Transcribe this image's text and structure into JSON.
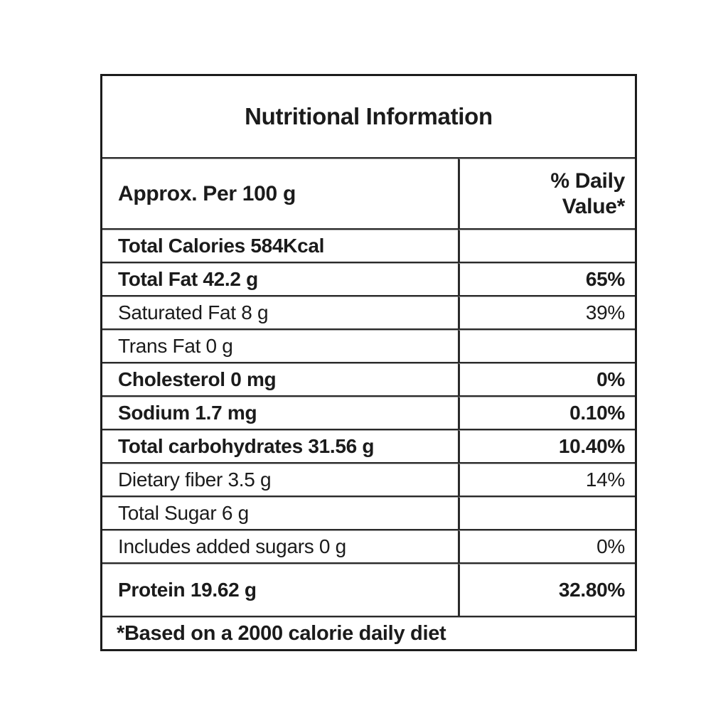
{
  "table": {
    "title": "Nutritional Information",
    "header": {
      "label": "Approx. Per 100 g",
      "value_line1": "% Daily",
      "value_line2": "Value*"
    },
    "rows": [
      {
        "label": "Total Calories 584Kcal",
        "value": "",
        "bold": true,
        "tall": false
      },
      {
        "label": "Total Fat 42.2 g",
        "value": "65%",
        "bold": true,
        "tall": false
      },
      {
        "label": "Saturated Fat 8 g",
        "value": "39%",
        "bold": false,
        "tall": false
      },
      {
        "label": "Trans Fat 0 g",
        "value": "",
        "bold": false,
        "tall": false
      },
      {
        "label": "Cholesterol 0 mg",
        "value": "0%",
        "bold": true,
        "tall": false
      },
      {
        "label": "Sodium 1.7 mg",
        "value": "0.10%",
        "bold": true,
        "tall": false
      },
      {
        "label": "Total carbohydrates 31.56 g",
        "value": "10.40%",
        "bold": true,
        "tall": false
      },
      {
        "label": "Dietary fiber 3.5 g",
        "value": "14%",
        "bold": false,
        "tall": false
      },
      {
        "label": "Total Sugar 6 g",
        "value": "",
        "bold": false,
        "tall": false
      },
      {
        "label": "Includes added sugars 0 g",
        "value": "0%",
        "bold": false,
        "tall": false
      },
      {
        "label": "Protein 19.62 g",
        "value": "32.80%",
        "bold": true,
        "tall": true
      }
    ],
    "footnote": "*Based on a 2000 calorie daily diet",
    "colors": {
      "text": "#1b1b1b",
      "border_dark": "#1c1c1c",
      "border_inner": "#2a2a2a",
      "border_faint": "#a3a3a3",
      "background": "#ffffff"
    }
  }
}
